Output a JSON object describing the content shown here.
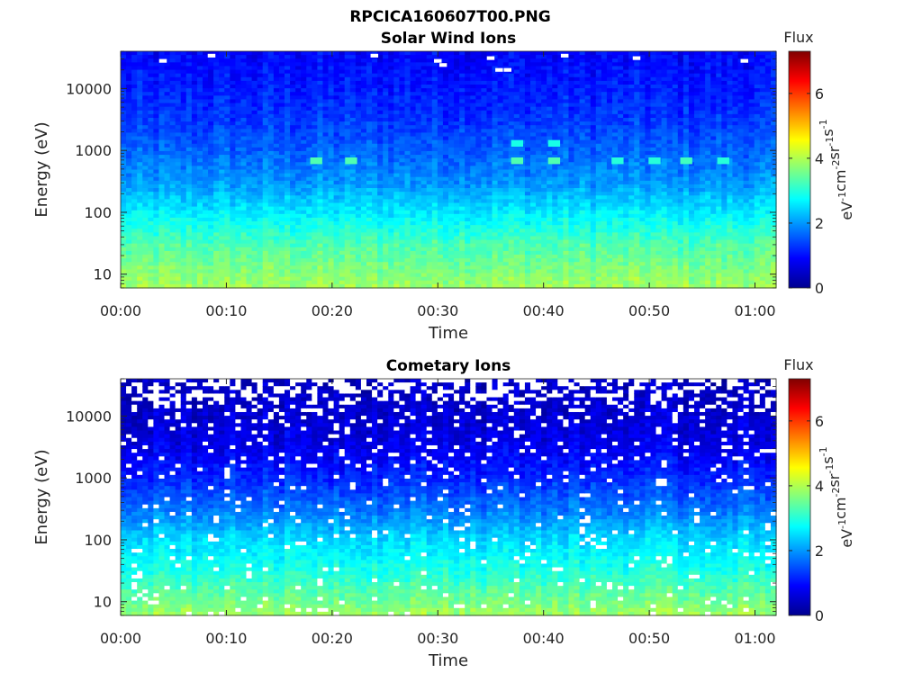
{
  "figure": {
    "title": "RPCICA160607T00.PNG"
  },
  "chart_data": [
    {
      "type": "heatmap",
      "title": "Solar Wind Ions",
      "xlabel": "Time",
      "ylabel": "Energy (eV)",
      "x_ticks": [
        "00:00",
        "00:10",
        "00:20",
        "00:30",
        "00:40",
        "00:50",
        "01:00"
      ],
      "xlim_minutes": [
        0,
        62
      ],
      "y_scale": "log",
      "y_ticks": [
        10,
        100,
        1000,
        10000
      ],
      "y_tick_labels": [
        "10",
        "100",
        "1000",
        "10000"
      ],
      "ylim": [
        6,
        40000
      ],
      "colorbar": {
        "title": "Flux",
        "label": "eV-1cm-2sr-1s-1",
        "label_base": [
          "eV",
          "cm",
          "sr",
          "s"
        ],
        "label_exp": [
          "-1",
          "-2",
          "-1",
          "-1"
        ],
        "range": [
          0,
          7.3
        ],
        "ticks": [
          0,
          2,
          4,
          6
        ],
        "tick_labels": [
          "0",
          "2",
          "4",
          "6"
        ],
        "colormap": "jet"
      },
      "profile": {
        "energy_eV": [
          6,
          10,
          30,
          100,
          300,
          1000,
          3000,
          10000,
          40000
        ],
        "log_flux": [
          3.9,
          3.7,
          3.3,
          2.6,
          2.0,
          1.6,
          1.3,
          1.1,
          0.9
        ]
      },
      "features": [
        {
          "time_min": 18.5,
          "energy_eV": 680,
          "log_flux": 3.3
        },
        {
          "time_min": 21.8,
          "energy_eV": 680,
          "log_flux": 3.3
        },
        {
          "time_min": 37.5,
          "energy_eV": 1300,
          "log_flux": 2.9
        },
        {
          "time_min": 37.5,
          "energy_eV": 680,
          "log_flux": 3.3
        },
        {
          "time_min": 41.0,
          "energy_eV": 1300,
          "log_flux": 2.9
        },
        {
          "time_min": 41.0,
          "energy_eV": 680,
          "log_flux": 3.3
        },
        {
          "time_min": 47.0,
          "energy_eV": 680,
          "log_flux": 3.0
        },
        {
          "time_min": 50.5,
          "energy_eV": 680,
          "log_flux": 3.0
        },
        {
          "time_min": 53.5,
          "energy_eV": 680,
          "log_flux": 3.2
        },
        {
          "time_min": 57.0,
          "energy_eV": 680,
          "log_flux": 3.0
        }
      ],
      "empty_cells": [
        {
          "time_min": 4.0,
          "energy_eV": 28000
        },
        {
          "time_min": 8.6,
          "energy_eV": 34000
        },
        {
          "time_min": 24.0,
          "energy_eV": 34000
        },
        {
          "time_min": 30.0,
          "energy_eV": 28000
        },
        {
          "time_min": 30.5,
          "energy_eV": 24000
        },
        {
          "time_min": 35.0,
          "energy_eV": 31000
        },
        {
          "time_min": 35.8,
          "energy_eV": 20000
        },
        {
          "time_min": 36.6,
          "energy_eV": 20000
        },
        {
          "time_min": 42.0,
          "energy_eV": 34000
        },
        {
          "time_min": 48.8,
          "energy_eV": 31000
        },
        {
          "time_min": 59.0,
          "energy_eV": 28000
        }
      ],
      "grid": false
    },
    {
      "type": "heatmap",
      "title": "Cometary Ions",
      "xlabel": "Time",
      "ylabel": "Energy (eV)",
      "x_ticks": [
        "00:00",
        "00:10",
        "00:20",
        "00:30",
        "00:40",
        "00:50",
        "01:00"
      ],
      "xlim_minutes": [
        0,
        62
      ],
      "y_scale": "log",
      "y_ticks": [
        10,
        100,
        1000,
        10000
      ],
      "y_tick_labels": [
        "10",
        "100",
        "1000",
        "10000"
      ],
      "ylim": [
        6,
        40000
      ],
      "colorbar": {
        "title": "Flux",
        "label": "eV-1cm-2sr-1s-1",
        "label_base": [
          "eV",
          "cm",
          "sr",
          "s"
        ],
        "label_exp": [
          "-1",
          "-2",
          "-1",
          "-1"
        ],
        "range": [
          0,
          7.3
        ],
        "ticks": [
          0,
          2,
          4,
          6
        ],
        "tick_labels": [
          "0",
          "2",
          "4",
          "6"
        ],
        "colormap": "jet"
      },
      "profile": {
        "energy_eV": [
          6,
          10,
          30,
          100,
          300,
          1000,
          3000,
          10000,
          40000
        ],
        "log_flux": [
          3.9,
          3.6,
          3.0,
          2.5,
          1.8,
          1.2,
          0.8,
          0.6,
          0.5
        ]
      },
      "features": [],
      "empty_cells": [],
      "empty_fraction_by_energy": {
        "energy_eV": [
          500,
          1500,
          5000,
          10000,
          15000,
          25000,
          40000
        ],
        "fraction": [
          0.05,
          0.07,
          0.09,
          0.1,
          0.25,
          0.45,
          0.5
        ]
      },
      "grid": false
    }
  ]
}
